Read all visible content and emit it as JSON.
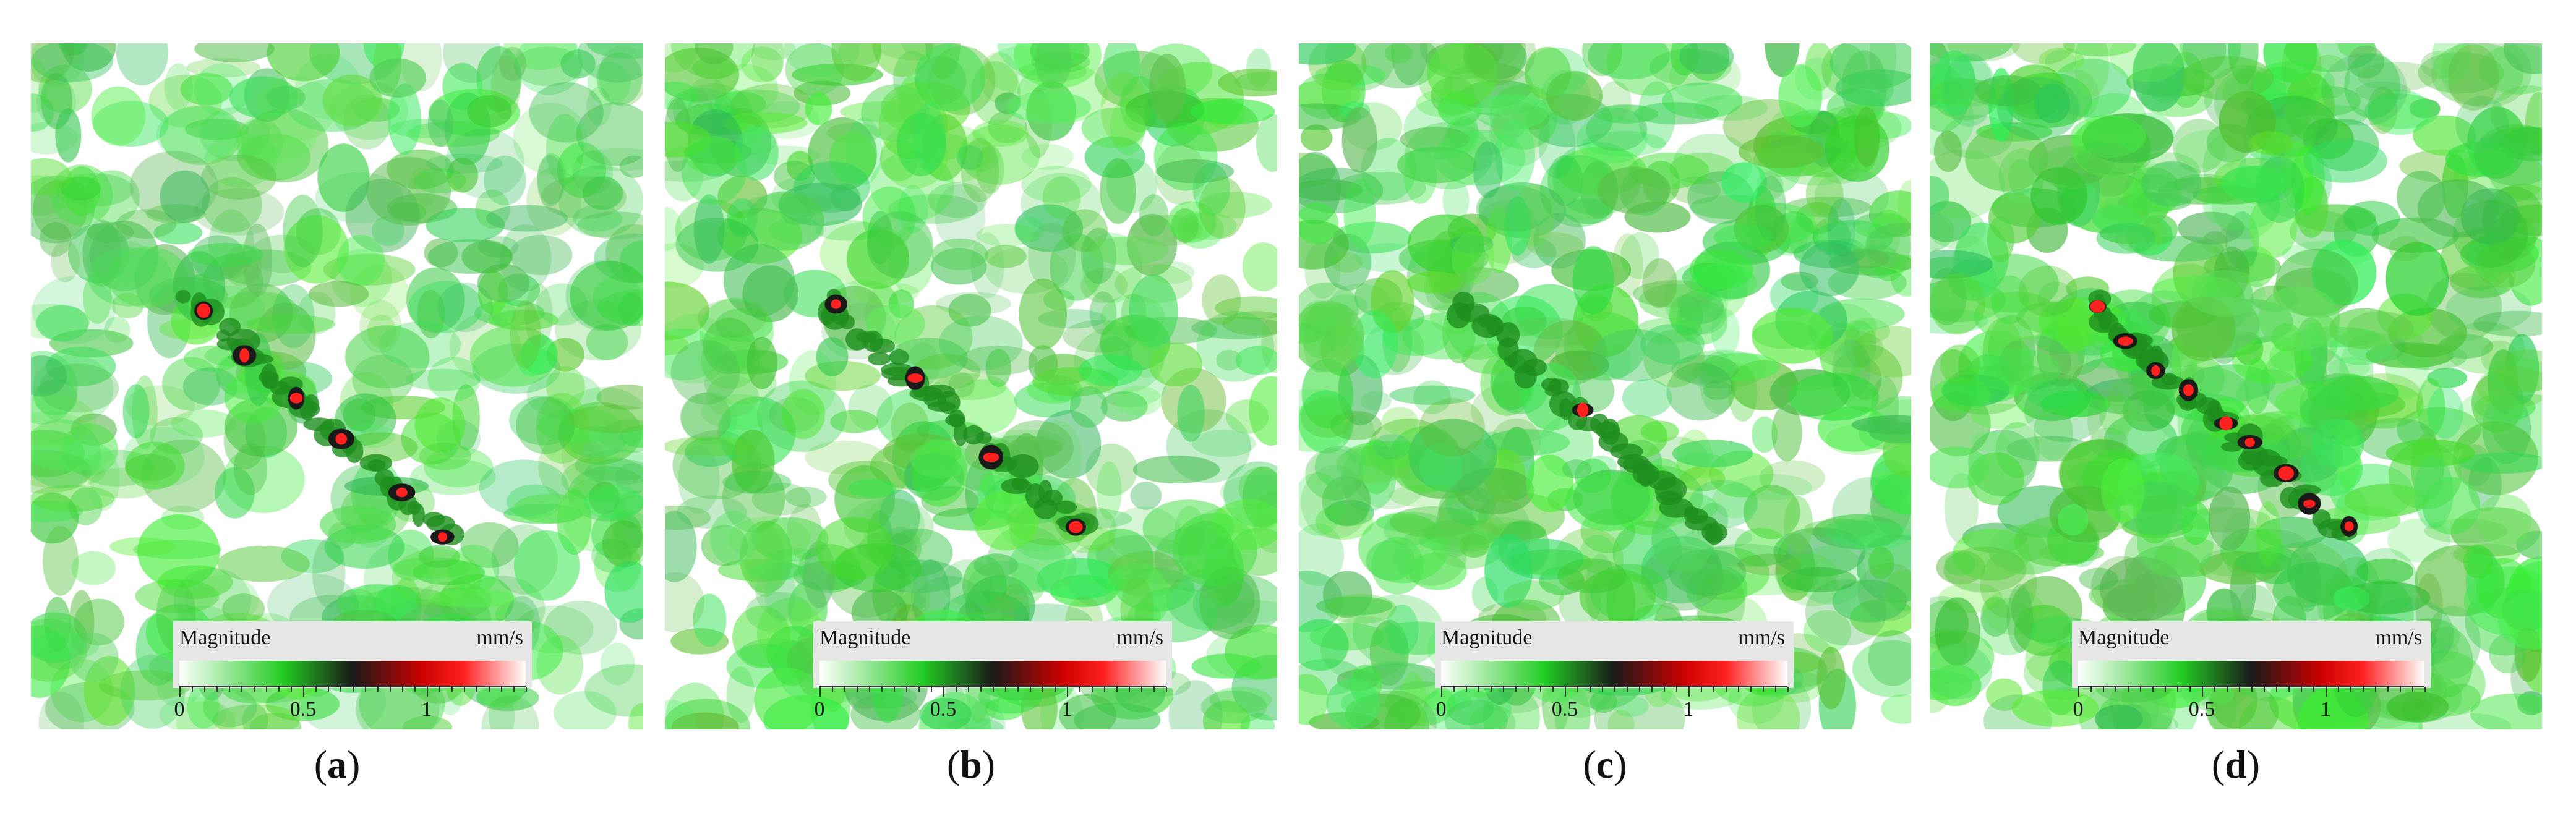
{
  "panels": [
    {
      "id": "a",
      "caption_label": "a",
      "legend_title": "Magnitude",
      "legend_unit": "mm/s",
      "tick_labels": [
        "0",
        "0.5",
        "1"
      ],
      "density": 0.45,
      "seed": 11,
      "hotspots": 6
    },
    {
      "id": "b",
      "caption_label": "b",
      "legend_title": "Magnitude",
      "legend_unit": "mm/s",
      "tick_labels": [
        "0",
        "0.5",
        "1"
      ],
      "density": 0.55,
      "seed": 23,
      "hotspots": 4
    },
    {
      "id": "c",
      "caption_label": "c",
      "legend_title": "Magnitude",
      "legend_unit": "mm/s",
      "tick_labels": [
        "0",
        "0.5",
        "1"
      ],
      "density": 0.65,
      "seed": 37,
      "hotspots": 1
    },
    {
      "id": "d",
      "caption_label": "d",
      "legend_title": "Magnitude",
      "legend_unit": "mm/s",
      "tick_labels": [
        "0",
        "0.5",
        "1"
      ],
      "density": 0.8,
      "seed": 51,
      "hotspots": 9
    }
  ],
  "colors": {
    "high": "#ff2020",
    "mid": "#1a1a1a",
    "low": "#22cc22",
    "zero": "#ffffff"
  }
}
